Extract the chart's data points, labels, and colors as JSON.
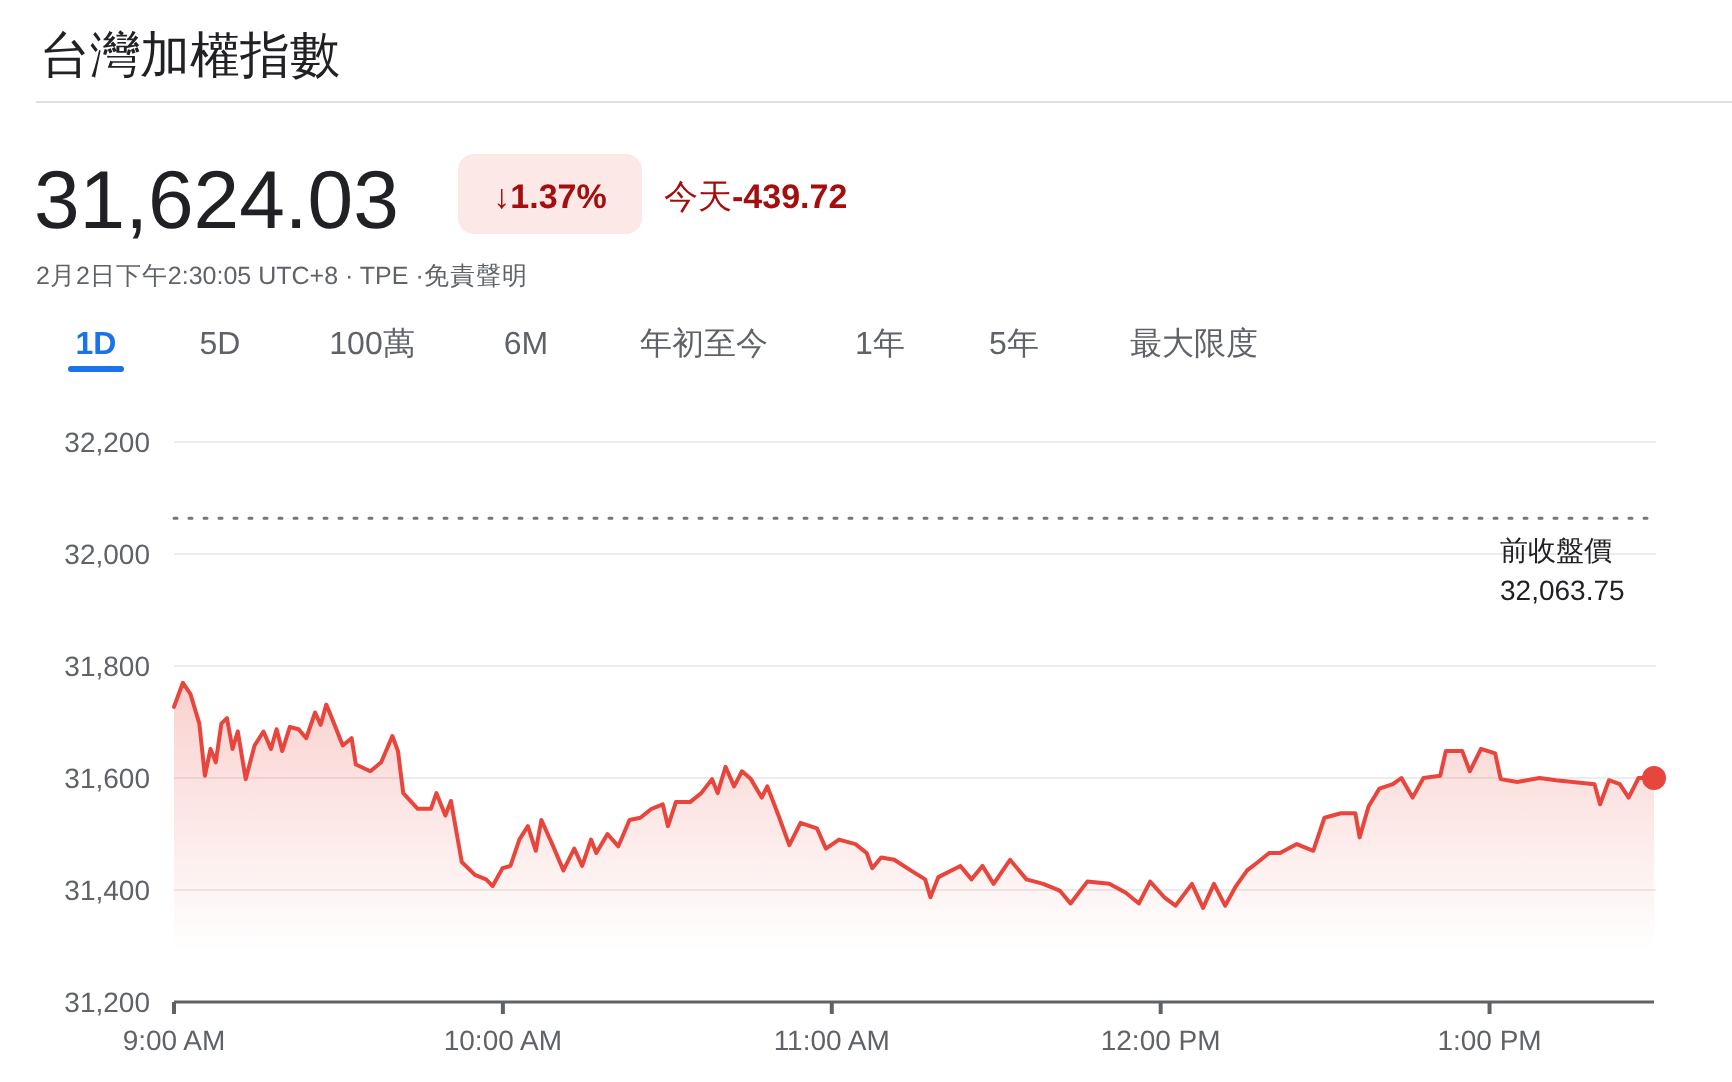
{
  "chart_data": {
    "type": "area",
    "title": "台灣加權指數",
    "subtitle": "2月2日下午2:30:05 UTC+8 · TPE ·免責聲明",
    "annotations": [
      "31,624.03",
      "↓1.37%",
      "今天",
      "-439.72",
      "1D",
      "5D",
      "100萬",
      "6M",
      "年初至今",
      "1年",
      "5年",
      "最大限度"
    ],
    "xlim": [
      9,
      13.5
    ],
    "xticks": [
      {
        "value": 9,
        "label": "9:00 AM"
      },
      {
        "value": 10,
        "label": "10:00 AM"
      },
      {
        "value": 11,
        "label": "11:00 AM"
      },
      {
        "value": 12,
        "label": "12:00 PM"
      },
      {
        "value": 13,
        "label": "1:00 PM"
      }
    ],
    "ylim": [
      31200,
      32200
    ],
    "yticks": [
      {
        "value": 31200,
        "label": "31,200"
      },
      {
        "value": 31400,
        "label": "31,400"
      },
      {
        "value": 31600,
        "label": "31,600"
      },
      {
        "value": 31800,
        "label": "31,800"
      },
      {
        "value": 32000,
        "label": "32,000"
      },
      {
        "value": 32200,
        "label": "32,200"
      }
    ],
    "grid": "y",
    "ref_lines": [
      {
        "axis": "y",
        "value": 32063.75,
        "label": "前收盤價32,063.75",
        "color": "#757575",
        "line_style": "dotted"
      }
    ],
    "series": [
      {
        "color": "#e8453c",
        "x": [
          9.0,
          9.027,
          9.05,
          9.077,
          9.094,
          9.111,
          9.127,
          9.144,
          9.161,
          9.178,
          9.194,
          9.218,
          9.245,
          9.272,
          9.295,
          9.312,
          9.329,
          9.352,
          9.379,
          9.402,
          9.429,
          9.446,
          9.463,
          9.48,
          9.513,
          9.54,
          9.553,
          9.597,
          9.63,
          9.664,
          9.681,
          9.697,
          9.741,
          9.781,
          9.798,
          9.825,
          9.842,
          9.875,
          9.915,
          9.949,
          9.969,
          9.999,
          10.023,
          10.05,
          10.076,
          10.1,
          10.117,
          10.15,
          10.184,
          10.217,
          10.241,
          10.268,
          10.284,
          10.318,
          10.351,
          10.385,
          10.418,
          10.452,
          10.486,
          10.502,
          10.526,
          10.569,
          10.603,
          10.636,
          10.653,
          10.677,
          10.703,
          10.727,
          10.754,
          10.787,
          10.804,
          10.838,
          10.871,
          10.905,
          10.955,
          10.982,
          11.022,
          11.072,
          11.106,
          11.123,
          11.15,
          11.19,
          11.24,
          11.284,
          11.3,
          11.324,
          11.391,
          11.425,
          11.458,
          11.492,
          11.542,
          11.592,
          11.643,
          11.693,
          11.726,
          11.777,
          11.844,
          11.894,
          11.934,
          11.968,
          12.011,
          12.045,
          12.095,
          12.129,
          12.162,
          12.196,
          12.229,
          12.263,
          12.296,
          12.33,
          12.363,
          12.414,
          12.464,
          12.498,
          12.548,
          12.592,
          12.605,
          12.632,
          12.665,
          12.706,
          12.732,
          12.766,
          12.799,
          12.85,
          12.867,
          12.917,
          12.94,
          12.974,
          13.017,
          13.034,
          13.084,
          13.152,
          13.202,
          13.319,
          13.336,
          13.363,
          13.396,
          13.423,
          13.453,
          13.5
        ],
        "values": [
          31727,
          31770,
          31750,
          31697,
          31604,
          31652,
          31628,
          31697,
          31707,
          31652,
          31683,
          31598,
          31658,
          31683,
          31652,
          31687,
          31648,
          31691,
          31687,
          31671,
          31717,
          31695,
          31731,
          31707,
          31658,
          31671,
          31624,
          31612,
          31628,
          31675,
          31648,
          31573,
          31545,
          31545,
          31573,
          31533,
          31559,
          31450,
          31427,
          31419,
          31407,
          31439,
          31443,
          31490,
          31514,
          31470,
          31525,
          31482,
          31435,
          31474,
          31443,
          31490,
          31466,
          31500,
          31478,
          31525,
          31529,
          31545,
          31553,
          31514,
          31557,
          31557,
          31573,
          31598,
          31573,
          31620,
          31585,
          31612,
          31598,
          31565,
          31585,
          31533,
          31480,
          31520,
          31510,
          31474,
          31490,
          31482,
          31466,
          31439,
          31458,
          31454,
          31435,
          31419,
          31387,
          31423,
          31443,
          31419,
          31443,
          31411,
          31454,
          31419,
          31411,
          31399,
          31376,
          31415,
          31411,
          31395,
          31376,
          31415,
          31387,
          31372,
          31411,
          31368,
          31411,
          31372,
          31407,
          31435,
          31450,
          31466,
          31466,
          31482,
          31470,
          31529,
          31537,
          31537,
          31494,
          31549,
          31581,
          31589,
          31600,
          31565,
          31600,
          31604,
          31648,
          31648,
          31612,
          31652,
          31644,
          31598,
          31593,
          31600,
          31596,
          31589,
          31553,
          31596,
          31589,
          31565,
          31600,
          31600
        ]
      },
      {
        "type": "scatter",
        "color": "#e8453c",
        "marker": "circle",
        "x": [
          13.5
        ],
        "values": [
          31600
        ]
      }
    ]
  }
}
